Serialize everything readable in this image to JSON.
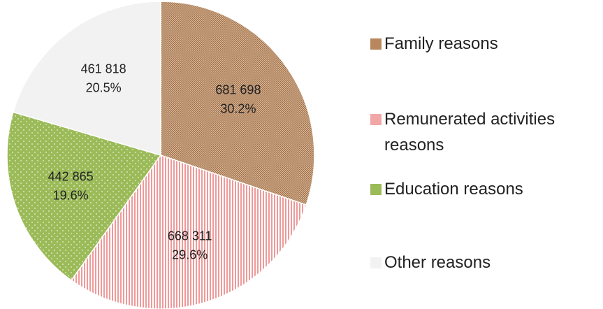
{
  "chart_data": {
    "type": "pie",
    "categories": [
      "Family reasons",
      "Remunerated activities reasons",
      "Education reasons",
      "Other reasons"
    ],
    "values": [
      681698,
      668311,
      442865,
      461818
    ],
    "value_labels": [
      "681 698",
      "668 311",
      "442 865",
      "461 818"
    ],
    "percent_labels": [
      "30.2%",
      "29.6%",
      "19.6%",
      "20.5%"
    ],
    "colors": [
      "#b8875e",
      "#f2a7a7",
      "#9bbb59",
      "#f2f2f2"
    ],
    "legend": "right"
  }
}
